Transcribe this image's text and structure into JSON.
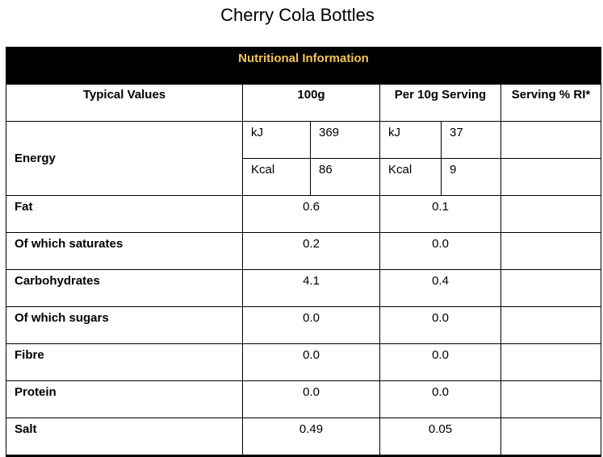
{
  "title": "Cherry Cola Bottles",
  "table": {
    "heading": "Nutritional Information",
    "columns": [
      "Typical Values",
      "100g",
      "Per 10g Serving",
      "Serving % RI*"
    ],
    "energy": {
      "label": "Energy",
      "kj": {
        "unit": "kJ",
        "per100": "369",
        "unit_serving": "kJ",
        "serving": "37"
      },
      "kcal": {
        "unit": "Kcal",
        "per100": "86",
        "unit_serving": "Kcal",
        "serving": "9"
      }
    },
    "rows": [
      {
        "label": "Fat",
        "per100": "0.6",
        "serving": "0.1"
      },
      {
        "label": "Of which saturates",
        "per100": "0.2",
        "serving": "0.0"
      },
      {
        "label": "Carbohydrates",
        "per100": "4.1",
        "serving": "0.4"
      },
      {
        "label": "Of which sugars",
        "per100": "0.0",
        "serving": "0.0"
      },
      {
        "label": "Fibre",
        "per100": "0.0",
        "serving": "0.0"
      },
      {
        "label": "Protein",
        "per100": "0.0",
        "serving": "0.0"
      },
      {
        "label": "Salt",
        "per100": "0.49",
        "serving": "0.05"
      }
    ]
  }
}
